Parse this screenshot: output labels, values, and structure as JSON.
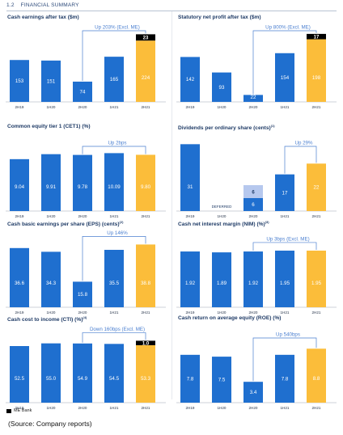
{
  "header": {
    "number": "1.2",
    "title": "FINANCIAL SUMMARY"
  },
  "legend": {
    "label": "ME Bank",
    "color": "#000000"
  },
  "source": "(Source: Company reports)",
  "colors": {
    "blue": "#1f6fcf",
    "yellow": "#fbbd3a",
    "blue_light": "#b6c8ee",
    "annot": "#4a7fd0"
  },
  "chart_data": [
    {
      "type": "bar",
      "title": "Cash earnings after tax ($m)",
      "categories": [
        "2H19",
        "1H20",
        "2H20",
        "1H21",
        "2H21"
      ],
      "values": [
        153,
        151,
        74,
        165,
        224
      ],
      "labels": [
        "153",
        "151",
        "74",
        "165",
        "224"
      ],
      "stack_top": {
        "index": 4,
        "value": 23,
        "label": "23"
      },
      "annotation": {
        "text": "Up 203% (Excl. ME)",
        "from": 2,
        "to": 4
      },
      "ymax": 260
    },
    {
      "type": "bar",
      "title": "Statutory net profit after tax ($m)",
      "categories": [
        "2H19",
        "1H20",
        "2H20",
        "1H21",
        "2H21"
      ],
      "values": [
        142,
        93,
        22,
        154,
        198
      ],
      "labels": [
        "142",
        "93",
        "22",
        "154",
        "198"
      ],
      "stack_top": {
        "index": 4,
        "value": 17,
        "label": "17"
      },
      "annotation": {
        "text": "Up 800% (Excl. ME)",
        "from": 2,
        "to": 4
      },
      "ymax": 225
    },
    {
      "type": "bar",
      "title": "Common equity tier 1 (CET1) (%)",
      "categories": [
        "2H19",
        "1H20",
        "2H20",
        "1H21",
        "2H21"
      ],
      "values": [
        9.04,
        9.91,
        9.78,
        10.09,
        9.8
      ],
      "labels": [
        "9.04",
        "9.91",
        "9.78",
        "10.09",
        "9.80"
      ],
      "annotation": {
        "text": "Up 2bps",
        "from": 2,
        "to": 4
      },
      "ymax": 12.4
    },
    {
      "type": "bar",
      "title": "Dividends per ordinary share (cents)",
      "title_sup": "(1)",
      "categories": [
        "2H19",
        "1H20",
        "2H20",
        "1H21",
        "2H21"
      ],
      "values": [
        31,
        0,
        6,
        17,
        22
      ],
      "labels": [
        "31",
        "DEFERRED",
        "6",
        "17",
        "22"
      ],
      "stack_top": {
        "index": 2,
        "value": 6,
        "label": "6"
      },
      "annotation": {
        "text": "Up 29%",
        "from": 3,
        "to": 4
      },
      "ymax": 33
    },
    {
      "type": "bar",
      "title": "Cash basic earnings per share (EPS) (cents)",
      "title_sup": "(2)",
      "categories": [
        "2H19",
        "1H20",
        "2H20",
        "1H21",
        "2H21"
      ],
      "values": [
        36.6,
        34.3,
        15.8,
        35.5,
        38.8
      ],
      "labels": [
        "36.6",
        "34.3",
        "15.8",
        "35.5",
        "38.8"
      ],
      "annotation": {
        "text": "Up 146%",
        "from": 2,
        "to": 4
      },
      "ymax": 44
    },
    {
      "type": "bar",
      "title": "Cash net interest margin (NIM) (%)",
      "title_sup": "(3)",
      "categories": [
        "2H19",
        "1H20",
        "2H20",
        "1H21",
        "2H21"
      ],
      "values": [
        1.92,
        1.89,
        1.92,
        1.95,
        1.95
      ],
      "labels": [
        "1.92",
        "1.89",
        "1.92",
        "1.95",
        "1.95"
      ],
      "annotation": {
        "text": "Up 3bps (Excl. ME)",
        "from": 2,
        "to": 4
      },
      "ymax": 2.45
    },
    {
      "type": "bar",
      "title": "Cash cost to income (CTI) (%)",
      "title_sup": "(4)",
      "categories": [
        "2H19",
        "1H20",
        "2H20",
        "1H21",
        "2H21"
      ],
      "values": [
        52.5,
        55.0,
        54.9,
        54.5,
        53.3
      ],
      "labels": [
        "52.5",
        "55.0",
        "54.9",
        "54.5",
        "53.3"
      ],
      "stack_top": {
        "index": 4,
        "value": 1.0,
        "label": "1.0"
      },
      "annotation": {
        "text": "Down 160bps (Excl. ME)",
        "from": 2,
        "to": 4
      },
      "ymax": 66
    },
    {
      "type": "bar",
      "title": "Cash return on average equity (ROE) (%)",
      "categories": [
        "2H19",
        "1H20",
        "2H20",
        "1H21",
        "2H21"
      ],
      "values": [
        7.8,
        7.5,
        3.4,
        7.8,
        8.8
      ],
      "labels": [
        "7.8",
        "7.5",
        "3.4",
        "7.8",
        "8.8"
      ],
      "annotation": {
        "text": "Up 540bps",
        "from": 2,
        "to": 4
      },
      "ymax": 11.6
    }
  ]
}
